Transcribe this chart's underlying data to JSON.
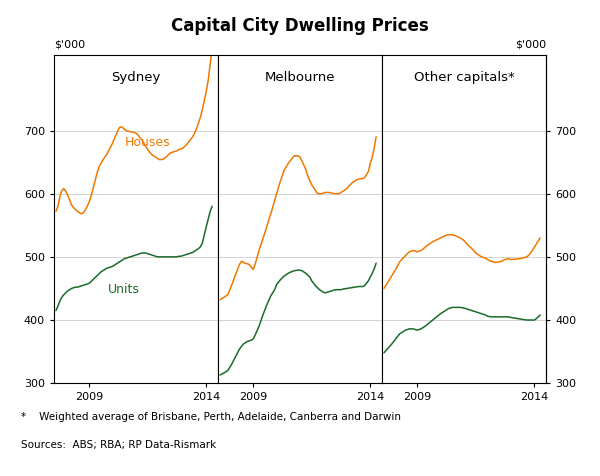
{
  "title": "Capital City Dwelling Prices",
  "ylabel_left": "$’000",
  "ylabel_right": "$’000",
  "ylim": [
    300,
    820
  ],
  "yticks": [
    300,
    400,
    500,
    600,
    700
  ],
  "panel_titles": [
    "Sydney",
    "Melbourne",
    "Other capitals*"
  ],
  "house_color": "#F07800",
  "unit_color": "#1A6B2A",
  "bg_color": "#FFFFFF",
  "grid_color": "#CCCCCC",
  "footnote": "*    Weighted average of Brisbane, Perth, Adelaide, Canberra and Darwin",
  "source": "Sources:  ABS; RBA; RP Data-Rismark",
  "sydney_houses_x": [
    2007.583,
    2007.667,
    2007.75,
    2007.833,
    2007.917,
    2008.0,
    2008.083,
    2008.167,
    2008.25,
    2008.333,
    2008.417,
    2008.5,
    2008.583,
    2008.667,
    2008.75,
    2008.833,
    2008.917,
    2009.0,
    2009.083,
    2009.167,
    2009.25,
    2009.333,
    2009.417,
    2009.5,
    2009.583,
    2009.667,
    2009.75,
    2009.833,
    2009.917,
    2010.0,
    2010.083,
    2010.167,
    2010.25,
    2010.333,
    2010.417,
    2010.5,
    2010.583,
    2010.667,
    2010.75,
    2010.833,
    2010.917,
    2011.0,
    2011.083,
    2011.167,
    2011.25,
    2011.333,
    2011.417,
    2011.5,
    2011.583,
    2011.667,
    2011.75,
    2011.833,
    2011.917,
    2012.0,
    2012.083,
    2012.167,
    2012.25,
    2012.333,
    2012.417,
    2012.5,
    2012.583,
    2012.667,
    2012.75,
    2012.833,
    2012.917,
    2013.0,
    2013.083,
    2013.167,
    2013.25,
    2013.333,
    2013.417,
    2013.5,
    2013.583,
    2013.667,
    2013.75,
    2013.833,
    2013.917,
    2014.0,
    2014.083,
    2014.167,
    2014.25
  ],
  "sydney_houses_y": [
    572,
    580,
    595,
    605,
    608,
    604,
    598,
    590,
    582,
    578,
    575,
    572,
    570,
    568,
    570,
    574,
    580,
    587,
    596,
    608,
    620,
    632,
    642,
    648,
    653,
    658,
    662,
    668,
    674,
    680,
    688,
    695,
    702,
    706,
    705,
    702,
    700,
    699,
    698,
    698,
    697,
    696,
    693,
    689,
    685,
    680,
    675,
    670,
    666,
    662,
    660,
    658,
    656,
    654,
    654,
    655,
    657,
    660,
    663,
    665,
    666,
    667,
    668,
    670,
    671,
    672,
    675,
    678,
    682,
    686,
    690,
    696,
    703,
    712,
    721,
    733,
    748,
    762,
    780,
    805,
    830
  ],
  "sydney_units_x": [
    2007.583,
    2007.667,
    2007.75,
    2007.833,
    2007.917,
    2008.0,
    2008.083,
    2008.167,
    2008.25,
    2008.333,
    2008.417,
    2008.5,
    2008.583,
    2008.667,
    2008.75,
    2008.833,
    2008.917,
    2009.0,
    2009.083,
    2009.167,
    2009.25,
    2009.333,
    2009.417,
    2009.5,
    2009.583,
    2009.667,
    2009.75,
    2009.833,
    2009.917,
    2010.0,
    2010.083,
    2010.167,
    2010.25,
    2010.333,
    2010.417,
    2010.5,
    2010.583,
    2010.667,
    2010.75,
    2010.833,
    2010.917,
    2011.0,
    2011.083,
    2011.167,
    2011.25,
    2011.333,
    2011.417,
    2011.5,
    2011.583,
    2011.667,
    2011.75,
    2011.833,
    2011.917,
    2012.0,
    2012.083,
    2012.167,
    2012.25,
    2012.333,
    2012.417,
    2012.5,
    2012.583,
    2012.667,
    2012.75,
    2012.833,
    2012.917,
    2013.0,
    2013.083,
    2013.167,
    2013.25,
    2013.333,
    2013.417,
    2013.5,
    2013.583,
    2013.667,
    2013.75,
    2013.833,
    2013.917,
    2014.0,
    2014.083,
    2014.167,
    2014.25
  ],
  "sydney_units_y": [
    415,
    422,
    430,
    436,
    440,
    443,
    446,
    448,
    450,
    451,
    452,
    452,
    453,
    454,
    455,
    456,
    457,
    458,
    461,
    464,
    467,
    470,
    473,
    476,
    478,
    480,
    482,
    483,
    484,
    485,
    487,
    489,
    491,
    493,
    495,
    497,
    498,
    499,
    500,
    501,
    502,
    503,
    504,
    505,
    506,
    506,
    506,
    505,
    504,
    503,
    502,
    501,
    500,
    500,
    500,
    500,
    500,
    500,
    500,
    500,
    500,
    500,
    500,
    501,
    501,
    502,
    503,
    504,
    505,
    506,
    507,
    509,
    511,
    513,
    516,
    522,
    535,
    548,
    560,
    572,
    580
  ],
  "melbourne_houses_x": [
    2007.583,
    2007.75,
    2007.917,
    2008.083,
    2008.25,
    2008.417,
    2008.5,
    2008.667,
    2008.833,
    2008.917,
    2009.0,
    2009.083,
    2009.25,
    2009.5,
    2009.667,
    2009.833,
    2010.0,
    2010.167,
    2010.333,
    2010.5,
    2010.667,
    2010.75,
    2010.917,
    2011.0,
    2011.083,
    2011.167,
    2011.25,
    2011.333,
    2011.5,
    2011.667,
    2011.75,
    2011.917,
    2012.0,
    2012.083,
    2012.25,
    2012.333,
    2012.5,
    2012.667,
    2012.75,
    2012.833,
    2013.0,
    2013.083,
    2013.25,
    2013.417,
    2013.5,
    2013.667,
    2013.75,
    2013.917,
    2014.0,
    2014.083,
    2014.167,
    2014.25
  ],
  "melbourne_houses_y": [
    432,
    436,
    440,
    455,
    472,
    488,
    493,
    490,
    488,
    484,
    480,
    488,
    510,
    538,
    558,
    578,
    600,
    620,
    638,
    648,
    656,
    660,
    660,
    658,
    652,
    645,
    638,
    628,
    614,
    605,
    600,
    600,
    601,
    602,
    602,
    601,
    600,
    600,
    602,
    604,
    608,
    612,
    618,
    622,
    623,
    624,
    625,
    635,
    648,
    658,
    672,
    690
  ],
  "melbourne_units_x": [
    2007.583,
    2007.75,
    2007.917,
    2008.083,
    2008.25,
    2008.417,
    2008.583,
    2008.75,
    2008.917,
    2009.0,
    2009.083,
    2009.25,
    2009.417,
    2009.583,
    2009.75,
    2009.917,
    2010.0,
    2010.167,
    2010.333,
    2010.5,
    2010.667,
    2010.75,
    2010.917,
    2011.0,
    2011.083,
    2011.25,
    2011.417,
    2011.5,
    2011.667,
    2011.833,
    2012.0,
    2012.083,
    2012.25,
    2012.417,
    2012.5,
    2012.583,
    2012.667,
    2012.75,
    2012.833,
    2013.0,
    2013.167,
    2013.333,
    2013.5,
    2013.667,
    2013.75,
    2013.917,
    2014.0,
    2014.083,
    2014.167,
    2014.25
  ],
  "melbourne_units_y": [
    313,
    316,
    320,
    330,
    342,
    354,
    362,
    366,
    368,
    370,
    376,
    390,
    408,
    424,
    438,
    448,
    456,
    464,
    470,
    474,
    477,
    478,
    479,
    479,
    478,
    474,
    468,
    462,
    454,
    448,
    444,
    443,
    445,
    447,
    448,
    448,
    448,
    448,
    449,
    450,
    451,
    452,
    453,
    453,
    454,
    462,
    468,
    474,
    481,
    490
  ],
  "other_houses_x": [
    2007.583,
    2007.75,
    2007.917,
    2008.083,
    2008.25,
    2008.5,
    2008.667,
    2008.833,
    2009.0,
    2009.167,
    2009.333,
    2009.5,
    2009.667,
    2009.833,
    2010.0,
    2010.167,
    2010.333,
    2010.5,
    2010.667,
    2010.833,
    2011.0,
    2011.083,
    2011.25,
    2011.417,
    2011.5,
    2011.667,
    2011.75,
    2011.917,
    2012.0,
    2012.083,
    2012.25,
    2012.333,
    2012.5,
    2012.667,
    2012.75,
    2012.917,
    2013.0,
    2013.167,
    2013.333,
    2013.5,
    2013.667,
    2013.75,
    2013.917,
    2014.0,
    2014.083,
    2014.25
  ],
  "other_houses_y": [
    450,
    460,
    470,
    480,
    492,
    502,
    508,
    510,
    508,
    510,
    515,
    520,
    524,
    527,
    530,
    533,
    535,
    535,
    533,
    530,
    526,
    522,
    516,
    510,
    506,
    502,
    500,
    498,
    496,
    494,
    492,
    491,
    492,
    494,
    496,
    497,
    496,
    496,
    497,
    498,
    500,
    502,
    510,
    515,
    520,
    530
  ],
  "other_units_x": [
    2007.583,
    2007.75,
    2007.917,
    2008.083,
    2008.25,
    2008.5,
    2008.667,
    2008.833,
    2009.0,
    2009.167,
    2009.333,
    2009.5,
    2009.667,
    2009.833,
    2010.0,
    2010.167,
    2010.333,
    2010.5,
    2010.667,
    2010.833,
    2011.0,
    2011.083,
    2011.25,
    2011.417,
    2011.583,
    2011.75,
    2011.917,
    2012.0,
    2012.167,
    2012.333,
    2012.5,
    2012.667,
    2012.75,
    2012.917,
    2013.0,
    2013.167,
    2013.333,
    2013.5,
    2013.667,
    2013.75,
    2013.917,
    2014.0,
    2014.083,
    2014.25
  ],
  "other_units_y": [
    348,
    355,
    362,
    370,
    378,
    384,
    386,
    386,
    384,
    386,
    390,
    395,
    400,
    405,
    410,
    414,
    418,
    420,
    420,
    420,
    419,
    418,
    416,
    414,
    412,
    410,
    408,
    406,
    405,
    405,
    405,
    405,
    405,
    405,
    404,
    403,
    402,
    401,
    400,
    400,
    400,
    400,
    402,
    408
  ],
  "xlim": [
    2007.5,
    2014.5
  ],
  "xticks": [
    2009,
    2014
  ]
}
